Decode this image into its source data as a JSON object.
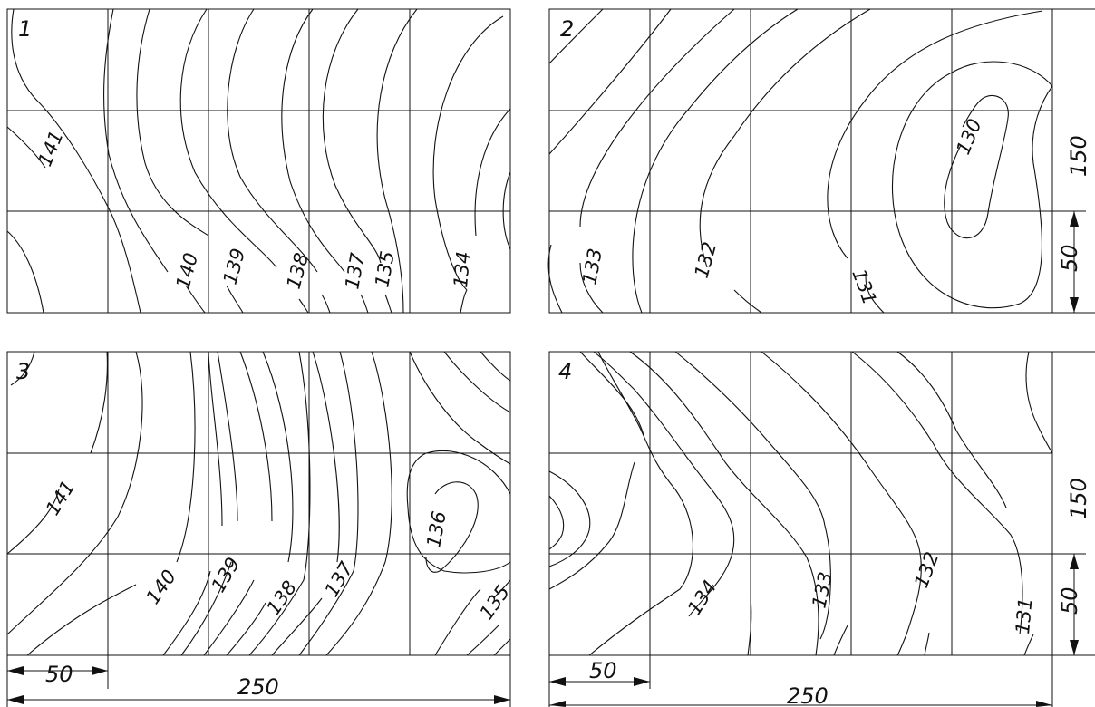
{
  "panels": [
    {
      "number": "1",
      "labels": [
        "141",
        "140",
        "139",
        "138",
        "137",
        "135",
        "134"
      ]
    },
    {
      "number": "2",
      "labels": [
        "133",
        "132",
        "131",
        "130"
      ]
    },
    {
      "number": "3",
      "labels": [
        "141",
        "140",
        "139",
        "138",
        "137",
        "136",
        "135"
      ]
    },
    {
      "number": "4",
      "labels": [
        "134",
        "133",
        "132",
        "131"
      ]
    }
  ],
  "dimensions": {
    "cell_width": "50",
    "total_width": "250",
    "total_height": "150",
    "cell_height": "50"
  }
}
